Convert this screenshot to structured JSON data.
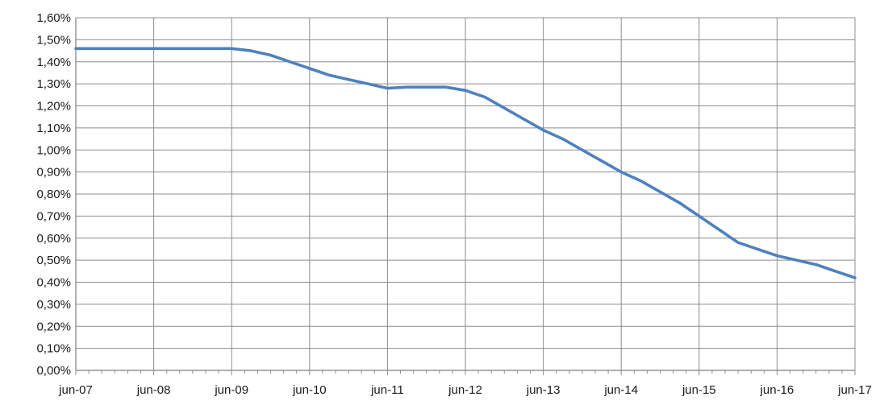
{
  "chart_data": {
    "type": "line",
    "title": "",
    "xlabel": "",
    "ylabel": "",
    "x_tick_labels": [
      "jun-07",
      "jun-08",
      "jun-09",
      "jun-10",
      "jun-11",
      "jun-12",
      "jun-13",
      "jun-14",
      "jun-15",
      "jun-16",
      "jun-17"
    ],
    "y_tick_labels": [
      "0,00%",
      "0,10%",
      "0,20%",
      "0,30%",
      "0,40%",
      "0,50%",
      "0,60%",
      "0,70%",
      "0,80%",
      "0,90%",
      "1,00%",
      "1,10%",
      "1,20%",
      "1,30%",
      "1,40%",
      "1,50%",
      "1,60%"
    ],
    "ylim": [
      0.0,
      1.6
    ],
    "y_unit": "%",
    "grid": true,
    "legend": "none",
    "line_color": "#4f81bd",
    "series": [
      {
        "x": [
          "2007-06",
          "2007-12",
          "2008-06",
          "2008-12",
          "2009-06",
          "2009-09",
          "2009-12",
          "2010-03",
          "2010-06",
          "2010-09",
          "2010-12",
          "2011-03",
          "2011-06",
          "2011-09",
          "2011-12",
          "2012-03",
          "2012-06",
          "2012-09",
          "2012-12",
          "2013-03",
          "2013-06",
          "2013-09",
          "2013-12",
          "2014-03",
          "2014-06",
          "2014-09",
          "2014-12",
          "2015-03",
          "2015-06",
          "2015-09",
          "2015-12",
          "2016-03",
          "2016-06",
          "2016-09",
          "2016-12",
          "2017-03",
          "2017-06"
        ],
        "values": [
          1.46,
          1.46,
          1.46,
          1.46,
          1.46,
          1.45,
          1.43,
          1.4,
          1.37,
          1.34,
          1.32,
          1.3,
          1.28,
          1.285,
          1.285,
          1.285,
          1.27,
          1.24,
          1.19,
          1.14,
          1.09,
          1.05,
          1.0,
          0.95,
          0.9,
          0.86,
          0.81,
          0.76,
          0.7,
          0.64,
          0.58,
          0.55,
          0.52,
          0.5,
          0.48,
          0.45,
          0.42
        ]
      }
    ]
  }
}
